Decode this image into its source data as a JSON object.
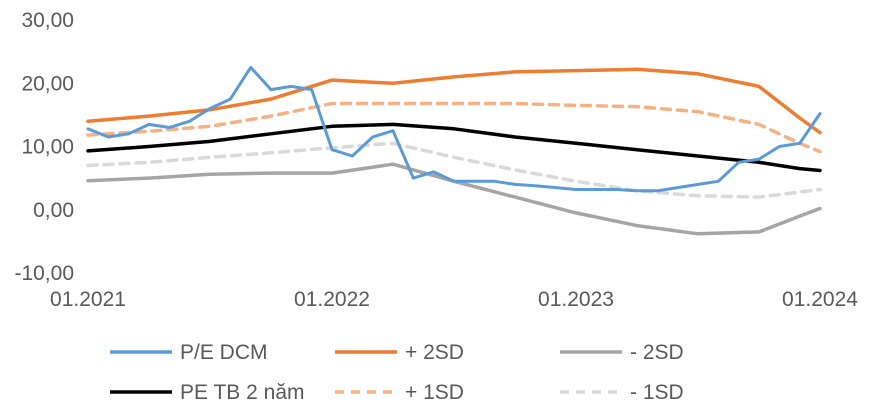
{
  "chart_data": {
    "type": "line",
    "title": "",
    "xlabel": "",
    "ylabel": "",
    "ylim": [
      -10,
      30
    ],
    "yticks": [
      -10,
      0,
      10,
      20,
      30
    ],
    "ytick_labels": [
      "-10,00",
      "0,00",
      "10,00",
      "20,00",
      "30,00"
    ],
    "xlim": [
      "2021-01",
      "2024-01"
    ],
    "xticks": [
      "2021-01",
      "2022-01",
      "2023-01",
      "2024-01"
    ],
    "xtick_labels": [
      "01.2021",
      "01.2022",
      "01.2023",
      "01.2024"
    ],
    "grid": false,
    "legend_position": "bottom",
    "series": [
      {
        "name": "P/E DCM",
        "color": "#5B9BD5",
        "dash": "solid",
        "x": [
          "2021-01",
          "2021-02",
          "2021-03",
          "2021-04",
          "2021-05",
          "2021-06",
          "2021-07",
          "2021-08",
          "2021-09",
          "2021-10",
          "2021-11",
          "2021-12",
          "2022-01",
          "2022-02",
          "2022-03",
          "2022-04",
          "2022-05",
          "2022-06",
          "2022-07",
          "2022-08",
          "2022-09",
          "2022-10",
          "2022-11",
          "2022-12",
          "2023-01",
          "2023-02",
          "2023-03",
          "2023-04",
          "2023-05",
          "2023-06",
          "2023-07",
          "2023-08",
          "2023-09",
          "2023-10",
          "2023-11",
          "2023-12",
          "2024-01"
        ],
        "values": [
          12.8,
          11.5,
          12.0,
          13.5,
          13.0,
          14.0,
          16.0,
          17.5,
          22.5,
          19.0,
          19.5,
          19.0,
          9.5,
          8.5,
          11.5,
          12.5,
          5.0,
          6.0,
          4.5,
          4.5,
          4.5,
          4.0,
          3.8,
          3.5,
          3.2,
          3.2,
          3.2,
          3.0,
          3.0,
          3.5,
          4.0,
          4.5,
          7.5,
          8.0,
          10.0,
          10.5,
          15.2
        ]
      },
      {
        "name": "+ 2SD",
        "color": "#ED7D31",
        "dash": "solid",
        "x": [
          "2021-01",
          "2021-04",
          "2021-07",
          "2021-10",
          "2022-01",
          "2022-04",
          "2022-07",
          "2022-10",
          "2023-01",
          "2023-04",
          "2023-07",
          "2023-10",
          "2023-12",
          "2024-01"
        ],
        "values": [
          14.0,
          14.8,
          15.8,
          17.5,
          20.5,
          20.0,
          21.0,
          21.8,
          22.0,
          22.2,
          21.5,
          19.5,
          14.5,
          12.2
        ]
      },
      {
        "name": "- 2SD",
        "color": "#A5A5A5",
        "dash": "solid",
        "x": [
          "2021-01",
          "2021-04",
          "2021-07",
          "2021-10",
          "2022-01",
          "2022-04",
          "2022-07",
          "2022-10",
          "2023-01",
          "2023-04",
          "2023-07",
          "2023-10",
          "2023-12",
          "2024-01"
        ],
        "values": [
          4.6,
          5.0,
          5.6,
          5.8,
          5.8,
          7.2,
          4.5,
          2.0,
          -0.5,
          -2.5,
          -3.8,
          -3.5,
          -1.0,
          0.2
        ]
      },
      {
        "name": "PE TB 2 năm",
        "color": "#000000",
        "dash": "solid",
        "x": [
          "2021-01",
          "2021-04",
          "2021-07",
          "2021-10",
          "2022-01",
          "2022-04",
          "2022-07",
          "2022-10",
          "2023-01",
          "2023-04",
          "2023-07",
          "2023-10",
          "2023-12",
          "2024-01"
        ],
        "values": [
          9.3,
          10.0,
          10.8,
          12.0,
          13.2,
          13.5,
          12.8,
          11.5,
          10.5,
          9.5,
          8.5,
          7.5,
          6.5,
          6.2
        ]
      },
      {
        "name": "+ 1SD",
        "color": "#F4B183",
        "dash": "dashed",
        "x": [
          "2021-01",
          "2021-04",
          "2021-07",
          "2021-10",
          "2022-01",
          "2022-04",
          "2022-07",
          "2022-10",
          "2023-01",
          "2023-04",
          "2023-07",
          "2023-10",
          "2023-12",
          "2024-01"
        ],
        "values": [
          11.8,
          12.4,
          13.2,
          14.8,
          16.8,
          16.8,
          16.8,
          16.8,
          16.5,
          16.3,
          15.5,
          13.5,
          10.5,
          9.2
        ]
      },
      {
        "name": "- 1SD",
        "color": "#D9D9D9",
        "dash": "dashed",
        "x": [
          "2021-01",
          "2021-04",
          "2021-07",
          "2021-10",
          "2022-01",
          "2022-04",
          "2022-07",
          "2022-10",
          "2023-01",
          "2023-04",
          "2023-07",
          "2023-10",
          "2023-12",
          "2024-01"
        ],
        "values": [
          7.0,
          7.5,
          8.3,
          9.0,
          9.8,
          10.5,
          8.3,
          6.3,
          4.5,
          3.0,
          2.2,
          2.0,
          2.8,
          3.2
        ]
      }
    ]
  }
}
